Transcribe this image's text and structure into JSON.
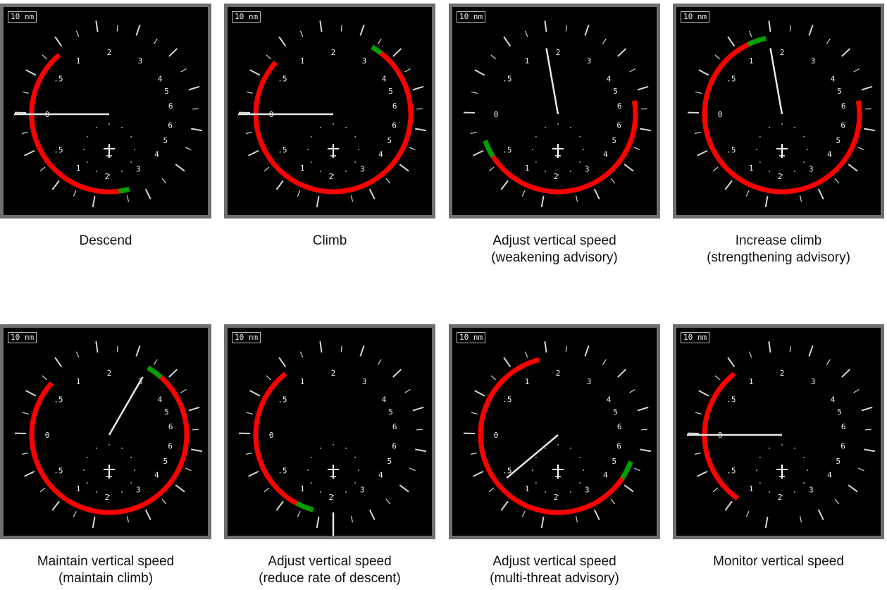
{
  "panels": [
    {
      "range": "10 nm",
      "caption": "Descend",
      "sub": "",
      "red": [
        [
          -40,
          -195
        ]
      ],
      "green": [
        [
          -187,
          -195
        ]
      ],
      "needle": -90,
      "needleLen": "long"
    },
    {
      "range": "10 nm",
      "caption": "Climb",
      "sub": "",
      "red": [
        [
          -48,
          -330
        ]
      ],
      "green": [
        [
          -322,
          -330
        ]
      ],
      "needle": -90,
      "needleLen": "long"
    },
    {
      "range": "10 nm",
      "caption": "Adjust vertical speed",
      "sub": "(weakening advisory)",
      "red": [
        [
          80,
          250
        ]
      ],
      "green": [
        [
          237,
          250
        ]
      ],
      "needle": -10,
      "needleLen": "short"
    },
    {
      "range": "10 nm",
      "caption": "Increase climb",
      "sub": "(strengthening advisory)",
      "red": [
        [
          80,
          348
        ]
      ],
      "green": [
        [
          334,
          348
        ]
      ],
      "needle": -10,
      "needleLen": "short"
    },
    {
      "range": "10 nm",
      "caption": "Maintain vertical speed",
      "sub": "(maintain climb)",
      "red": [
        [
          -48,
          -330
        ]
      ],
      "green": [
        [
          -318,
          -330
        ]
      ],
      "needle": 30,
      "needleLen": "short"
    },
    {
      "range": "10 nm",
      "caption": "Adjust vertical speed",
      "sub": "(reduce rate of descent)",
      "red": [
        [
          -38,
          -165
        ]
      ],
      "green": [
        [
          -152,
          -165
        ]
      ],
      "needle": 180,
      "needleLen": "vertical"
    },
    {
      "range": "10 nm",
      "caption": "Adjust vertical speed",
      "sub": "(multi-threat advisory)",
      "red": [
        [
          -45,
          -92
        ],
        [
          -14,
          -250
        ]
      ],
      "green": [
        [
          -236,
          -250
        ]
      ],
      "needle": -130,
      "needleLen": "short"
    },
    {
      "range": "10 nm",
      "caption": "Monitor vertical speed",
      "sub": "",
      "red": [
        [
          -38,
          -145
        ]
      ],
      "green": [],
      "needle": -90,
      "needleLen": "long"
    }
  ],
  "scale": {
    "left": [
      "6",
      "5",
      "4",
      "3",
      "2",
      "1",
      ".5",
      "0",
      ".5",
      "1",
      "2"
    ],
    "right": [
      "2",
      "3",
      "4",
      "5",
      "6",
      "6",
      "5",
      "4",
      "3",
      "2",
      "1"
    ]
  },
  "colors": {
    "red": "#ff0000",
    "green": "#00a000",
    "white": "#ffffff",
    "needle": "#e8e8e8"
  }
}
